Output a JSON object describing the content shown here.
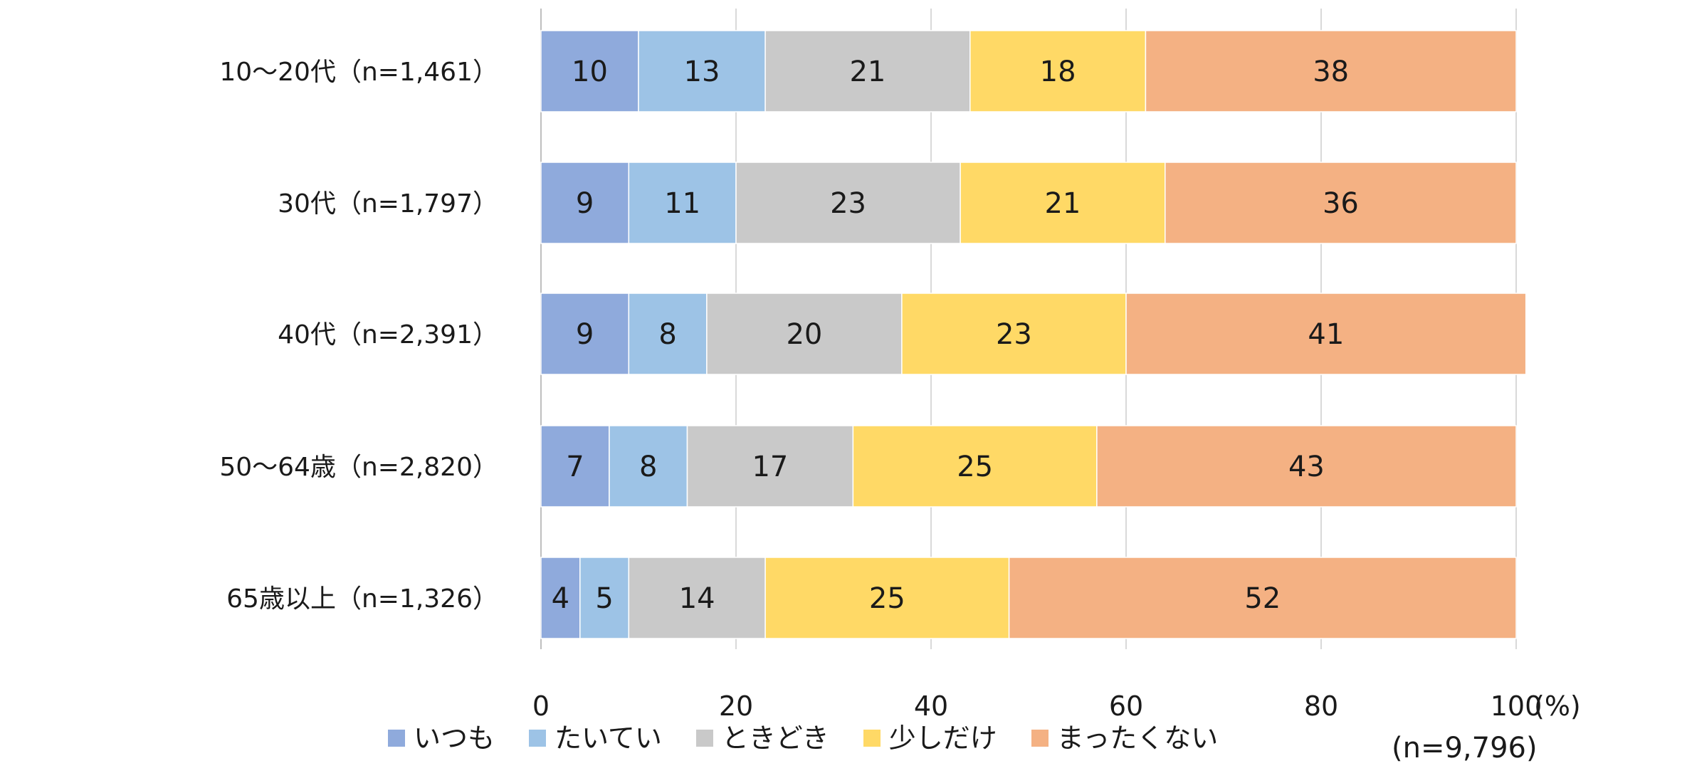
{
  "chart_data": {
    "type": "bar",
    "orientation": "horizontal",
    "stacked": true,
    "categories": [
      "10〜20代（n=1,461）",
      "30代（n=1,797）",
      "40代（n=2,391）",
      "50〜64歳（n=2,820）",
      "65歳以上（n=1,326）"
    ],
    "series": [
      {
        "name": "いつも",
        "color": "#8faadc",
        "values": [
          10,
          9,
          9,
          7,
          4
        ]
      },
      {
        "name": "たいてい",
        "color": "#9dc3e6",
        "values": [
          13,
          11,
          8,
          8,
          5
        ]
      },
      {
        "name": "ときどき",
        "color": "#c9c9c9",
        "values": [
          21,
          23,
          20,
          17,
          14
        ]
      },
      {
        "name": "少しだけ",
        "color": "#ffd966",
        "values": [
          18,
          21,
          23,
          25,
          25
        ]
      },
      {
        "name": "まったくない",
        "color": "#f4b183",
        "values": [
          38,
          36,
          41,
          43,
          52
        ]
      }
    ],
    "xlim": [
      0,
      100
    ],
    "xticks": [
      0,
      20,
      40,
      60,
      80,
      100
    ],
    "x_unit": "(%)",
    "note": "(n=9,796)",
    "grid": true,
    "legend_position": "bottom"
  }
}
